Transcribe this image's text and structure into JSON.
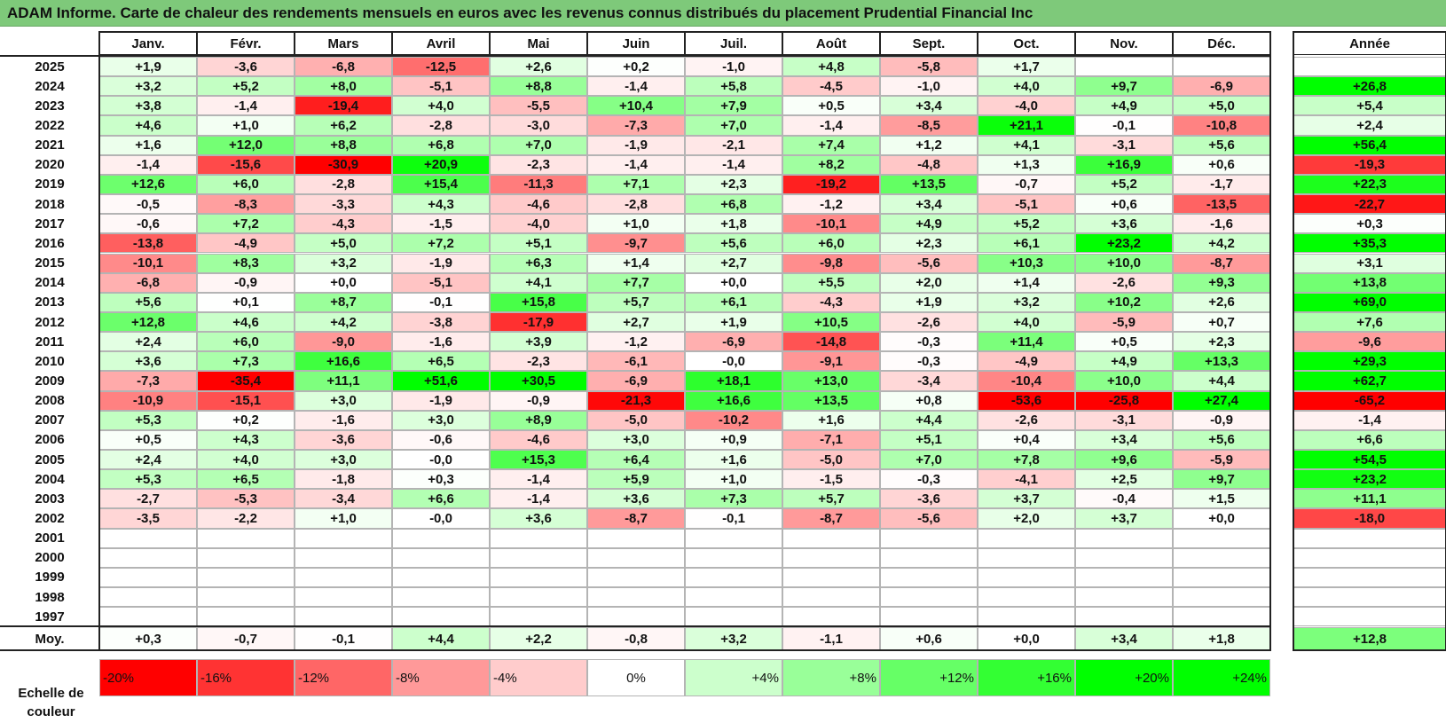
{
  "title": "ADAM Informe. Carte de chaleur des rendements mensuels en euros avec les revenus connus distribués du placement Prudential Financial Inc",
  "chart_data": {
    "type": "heatmap",
    "months": [
      "Janv.",
      "Févr.",
      "Mars",
      "Avril",
      "Mai",
      "Juin",
      "Juil.",
      "Août",
      "Sept.",
      "Oct.",
      "Nov.",
      "Déc."
    ],
    "year_header": "Année",
    "rows": [
      {
        "year": "2025",
        "values": [
          "+1,9",
          "-3,6",
          "-6,8",
          "-12,5",
          "+2,6",
          "+0,2",
          "-1,0",
          "+4,8",
          "-5,8",
          "+1,7",
          "",
          ""
        ],
        "annual": ""
      },
      {
        "year": "2024",
        "values": [
          "+3,2",
          "+5,2",
          "+8,0",
          "-5,1",
          "+8,8",
          "-1,4",
          "+5,8",
          "-4,5",
          "-1,0",
          "+4,0",
          "+9,7",
          "-6,9"
        ],
        "annual": "+26,8"
      },
      {
        "year": "2023",
        "values": [
          "+3,8",
          "-1,4",
          "-19,4",
          "+4,0",
          "-5,5",
          "+10,4",
          "+7,9",
          "+0,5",
          "+3,4",
          "-4,0",
          "+4,9",
          "+5,0"
        ],
        "annual": "+5,4"
      },
      {
        "year": "2022",
        "values": [
          "+4,6",
          "+1,0",
          "+6,2",
          "-2,8",
          "-3,0",
          "-7,3",
          "+7,0",
          "-1,4",
          "-8,5",
          "+21,1",
          "-0,1",
          "-10,8"
        ],
        "annual": "+2,4"
      },
      {
        "year": "2021",
        "values": [
          "+1,6",
          "+12,0",
          "+8,8",
          "+6,8",
          "+7,0",
          "-1,9",
          "-2,1",
          "+7,4",
          "+1,2",
          "+4,1",
          "-3,1",
          "+5,6"
        ],
        "annual": "+56,4"
      },
      {
        "year": "2020",
        "values": [
          "-1,4",
          "-15,6",
          "-30,9",
          "+20,9",
          "-2,3",
          "-1,4",
          "-1,4",
          "+8,2",
          "-4,8",
          "+1,3",
          "+16,9",
          "+0,6"
        ],
        "annual": "-19,3"
      },
      {
        "year": "2019",
        "values": [
          "+12,6",
          "+6,0",
          "-2,8",
          "+15,4",
          "-11,3",
          "+7,1",
          "+2,3",
          "-19,2",
          "+13,5",
          "-0,7",
          "+5,2",
          "-1,7"
        ],
        "annual": "+22,3"
      },
      {
        "year": "2018",
        "values": [
          "-0,5",
          "-8,3",
          "-3,3",
          "+4,3",
          "-4,6",
          "-2,8",
          "+6,8",
          "-1,2",
          "+3,4",
          "-5,1",
          "+0,6",
          "-13,5"
        ],
        "annual": "-22,7"
      },
      {
        "year": "2017",
        "values": [
          "-0,6",
          "+7,2",
          "-4,3",
          "-1,5",
          "-4,0",
          "+1,0",
          "+1,8",
          "-10,1",
          "+4,9",
          "+5,2",
          "+3,6",
          "-1,6"
        ],
        "annual": "+0,3"
      },
      {
        "year": "2016",
        "values": [
          "-13,8",
          "-4,9",
          "+5,0",
          "+7,2",
          "+5,1",
          "-9,7",
          "+5,6",
          "+6,0",
          "+2,3",
          "+6,1",
          "+23,2",
          "+4,2"
        ],
        "annual": "+35,3"
      },
      {
        "year": "2015",
        "values": [
          "-10,1",
          "+8,3",
          "+3,2",
          "-1,9",
          "+6,3",
          "+1,4",
          "+2,7",
          "-9,8",
          "-5,6",
          "+10,3",
          "+10,0",
          "-8,7"
        ],
        "annual": "+3,1"
      },
      {
        "year": "2014",
        "values": [
          "-6,8",
          "-0,9",
          "+0,0",
          "-5,1",
          "+4,1",
          "+7,7",
          "+0,0",
          "+5,5",
          "+2,0",
          "+1,4",
          "-2,6",
          "+9,3"
        ],
        "annual": "+13,8"
      },
      {
        "year": "2013",
        "values": [
          "+5,6",
          "+0,1",
          "+8,7",
          "-0,1",
          "+15,8",
          "+5,7",
          "+6,1",
          "-4,3",
          "+1,9",
          "+3,2",
          "+10,2",
          "+2,6"
        ],
        "annual": "+69,0"
      },
      {
        "year": "2012",
        "values": [
          "+12,8",
          "+4,6",
          "+4,2",
          "-3,8",
          "-17,9",
          "+2,7",
          "+1,9",
          "+10,5",
          "-2,6",
          "+4,0",
          "-5,9",
          "+0,7"
        ],
        "annual": "+7,6"
      },
      {
        "year": "2011",
        "values": [
          "+2,4",
          "+6,0",
          "-9,0",
          "-1,6",
          "+3,9",
          "-1,2",
          "-6,9",
          "-14,8",
          "-0,3",
          "+11,4",
          "+0,5",
          "+2,3"
        ],
        "annual": "-9,6"
      },
      {
        "year": "2010",
        "values": [
          "+3,6",
          "+7,3",
          "+16,6",
          "+6,5",
          "-2,3",
          "-6,1",
          "-0,0",
          "-9,1",
          "-0,3",
          "-4,9",
          "+4,9",
          "+13,3"
        ],
        "annual": "+29,3"
      },
      {
        "year": "2009",
        "values": [
          "-7,3",
          "-35,4",
          "+11,1",
          "+51,6",
          "+30,5",
          "-6,9",
          "+18,1",
          "+13,0",
          "-3,4",
          "-10,4",
          "+10,0",
          "+4,4"
        ],
        "annual": "+62,7"
      },
      {
        "year": "2008",
        "values": [
          "-10,9",
          "-15,1",
          "+3,0",
          "-1,9",
          "-0,9",
          "-21,3",
          "+16,6",
          "+13,5",
          "+0,8",
          "-53,6",
          "-25,8",
          "+27,4"
        ],
        "annual": "-65,2"
      },
      {
        "year": "2007",
        "values": [
          "+5,3",
          "+0,2",
          "-1,6",
          "+3,0",
          "+8,9",
          "-5,0",
          "-10,2",
          "+1,6",
          "+4,4",
          "-2,6",
          "-3,1",
          "-0,9"
        ],
        "annual": "-1,4"
      },
      {
        "year": "2006",
        "values": [
          "+0,5",
          "+4,3",
          "-3,6",
          "-0,6",
          "-4,6",
          "+3,0",
          "+0,9",
          "-7,1",
          "+5,1",
          "+0,4",
          "+3,4",
          "+5,6"
        ],
        "annual": "+6,6"
      },
      {
        "year": "2005",
        "values": [
          "+2,4",
          "+4,0",
          "+3,0",
          "-0,0",
          "+15,3",
          "+6,4",
          "+1,6",
          "-5,0",
          "+7,0",
          "+7,8",
          "+9,6",
          "-5,9"
        ],
        "annual": "+54,5"
      },
      {
        "year": "2004",
        "values": [
          "+5,3",
          "+6,5",
          "-1,8",
          "+0,3",
          "-1,4",
          "+5,9",
          "+1,0",
          "-1,5",
          "-0,3",
          "-4,1",
          "+2,5",
          "+9,7"
        ],
        "annual": "+23,2"
      },
      {
        "year": "2003",
        "values": [
          "-2,7",
          "-5,3",
          "-3,4",
          "+6,6",
          "-1,4",
          "+3,6",
          "+7,3",
          "+5,7",
          "-3,6",
          "+3,7",
          "-0,4",
          "+1,5"
        ],
        "annual": "+11,1"
      },
      {
        "year": "2002",
        "values": [
          "-3,5",
          "-2,2",
          "+1,0",
          "-0,0",
          "+3,6",
          "-8,7",
          "-0,1",
          "-8,7",
          "-5,6",
          "+2,0",
          "+3,7",
          "+0,0"
        ],
        "annual": "-18,0"
      },
      {
        "year": "2001",
        "values": [
          "",
          "",
          "",
          "",
          "",
          "",
          "",
          "",
          "",
          "",
          "",
          ""
        ],
        "annual": ""
      },
      {
        "year": "2000",
        "values": [
          "",
          "",
          "",
          "",
          "",
          "",
          "",
          "",
          "",
          "",
          "",
          ""
        ],
        "annual": ""
      },
      {
        "year": "1999",
        "values": [
          "",
          "",
          "",
          "",
          "",
          "",
          "",
          "",
          "",
          "",
          "",
          ""
        ],
        "annual": ""
      },
      {
        "year": "1998",
        "values": [
          "",
          "",
          "",
          "",
          "",
          "",
          "",
          "",
          "",
          "",
          "",
          ""
        ],
        "annual": ""
      },
      {
        "year": "1997",
        "values": [
          "",
          "",
          "",
          "",
          "",
          "",
          "",
          "",
          "",
          "",
          "",
          ""
        ],
        "annual": ""
      }
    ],
    "average": {
      "label": "Moy.",
      "values": [
        "+0,3",
        "-0,7",
        "-0,1",
        "+4,4",
        "+2,2",
        "-0,8",
        "+3,2",
        "-1,1",
        "+0,6",
        "+0,0",
        "+3,4",
        "+1,8"
      ],
      "annual": "+12,8"
    },
    "scale": {
      "title": "Echelle de couleur",
      "labels": [
        "-20%",
        "-16%",
        "-12%",
        "-8%",
        "-4%",
        "0%",
        "+4%",
        "+8%",
        "+12%",
        "+16%",
        "+20%",
        "+24%"
      ],
      "values": [
        -20,
        -16,
        -12,
        -8,
        -4,
        0,
        4,
        8,
        12,
        16,
        20,
        24
      ]
    },
    "colors": {
      "negative": "#ff0000",
      "positive": "#00ff00",
      "neutral": "#ffffff"
    }
  }
}
